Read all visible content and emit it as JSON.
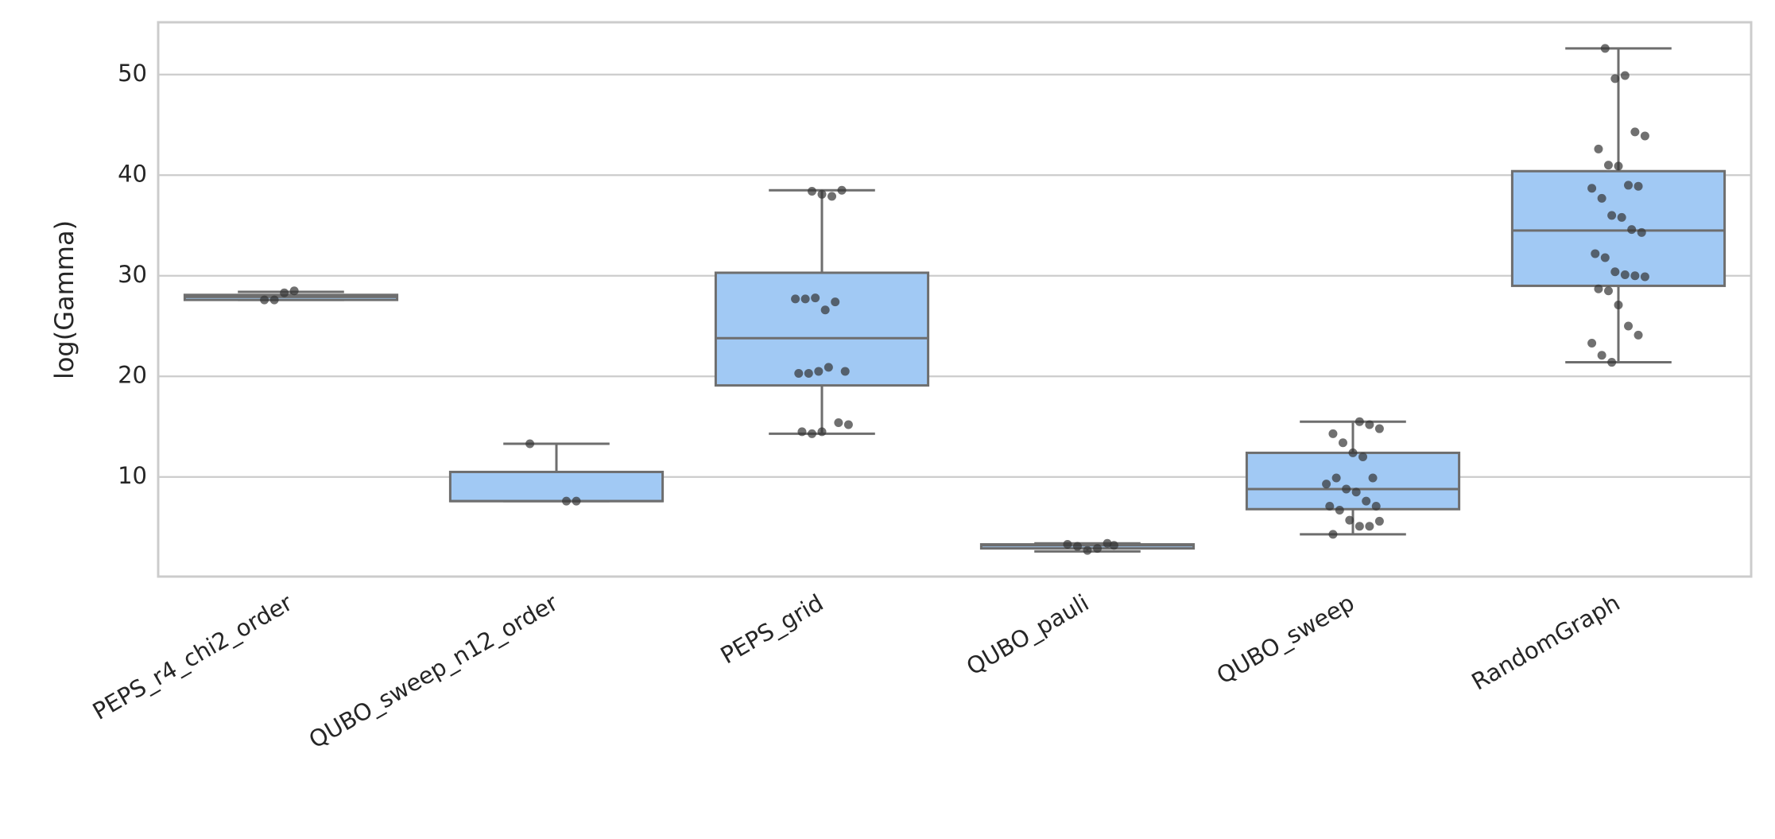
{
  "chart_data": {
    "type": "box",
    "y_label": "log(Gamma)",
    "categories": [
      "PEPS_r4_chi2_order",
      "QUBO_sweep_n12_order",
      "PEPS_grid",
      "QUBO_pauli",
      "QUBO_sweep",
      "RandomGraph"
    ],
    "boxes": [
      {
        "whislo": 27.6,
        "q1": 27.6,
        "med": 27.9,
        "q3": 28.1,
        "whishi": 28.4
      },
      {
        "whislo": 7.6,
        "q1": 7.6,
        "med": 7.6,
        "q3": 10.5,
        "whishi": 13.3
      },
      {
        "whislo": 14.3,
        "q1": 19.1,
        "med": 23.8,
        "q3": 30.3,
        "whishi": 38.5
      },
      {
        "whislo": 2.6,
        "q1": 2.9,
        "med": 3.2,
        "q3": 3.3,
        "whishi": 3.4
      },
      {
        "whislo": 4.3,
        "q1": 6.8,
        "med": 8.8,
        "q3": 12.4,
        "whishi": 15.5
      },
      {
        "whislo": 21.4,
        "q1": 29.0,
        "med": 34.5,
        "q3": 40.4,
        "whishi": 52.6
      }
    ],
    "points": [
      [
        27.6,
        27.6,
        28.3,
        28.5
      ],
      [
        7.6,
        7.6,
        13.3
      ],
      [
        38.4,
        38.1,
        37.9,
        38.5,
        27.7,
        27.7,
        27.8,
        26.6,
        27.4,
        20.5,
        20.3,
        20.3,
        20.5,
        20.9,
        15.4,
        15.2,
        14.5,
        14.3,
        14.5
      ],
      [
        3.2,
        3.3,
        3.1,
        2.7,
        2.9,
        3.4
      ],
      [
        15.5,
        15.2,
        14.8,
        14.3,
        13.4,
        12.4,
        12.0,
        9.9,
        9.3,
        9.9,
        8.8,
        8.5,
        7.6,
        7.1,
        7.1,
        6.7,
        5.7,
        5.1,
        5.1,
        5.6,
        4.3
      ],
      [
        52.6,
        49.6,
        49.9,
        44.3,
        43.9,
        42.6,
        41.0,
        40.9,
        39.0,
        38.9,
        38.7,
        37.7,
        36.0,
        35.8,
        34.6,
        34.3,
        32.2,
        31.8,
        30.4,
        30.1,
        30.0,
        29.9,
        28.7,
        28.5,
        27.1,
        25.0,
        24.1,
        23.3,
        22.1,
        21.4
      ]
    ],
    "box_color": "#a1c9f4",
    "line_color": "#6e6e6e",
    "point_color": "#333333",
    "ylim": [
      0.1,
      55.2
    ],
    "yticks": [
      10,
      20,
      30,
      40,
      50
    ],
    "grid": true
  }
}
